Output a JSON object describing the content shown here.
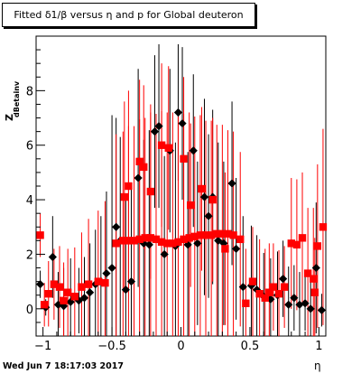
{
  "title": "Fitted δ1/β versus η and p for Global deuteron",
  "footer": "Wed Jun  7 18:17:03 2017",
  "chart_data": {
    "type": "scatter",
    "title": "Fitted δ1/β versus η and p for Global deuteron",
    "xlabel": "η",
    "ylabel": "Z",
    "ylabel_sub": "dBetainv",
    "xlim": [
      -1.05,
      1.05
    ],
    "ylim": [
      -1.0,
      10.0
    ],
    "xticks": [
      -1,
      -0.5,
      0,
      0.5,
      1
    ],
    "xtick_labels": [
      "−1",
      "−0.5",
      "0",
      "0.5",
      "1"
    ],
    "yticks": [
      0,
      2,
      4,
      6,
      8
    ],
    "ytick_labels": [
      "0",
      "2",
      "4",
      "6",
      "8"
    ],
    "grid": false,
    "series": [
      {
        "marker": "diamond",
        "color": "#000000",
        "points": [
          {
            "x": -1.02,
            "y": 0.9,
            "err": 0.5
          },
          {
            "x": -0.98,
            "y": 0.05,
            "err": 0.3
          },
          {
            "x": -0.93,
            "y": 1.9,
            "err": 1.5
          },
          {
            "x": -0.89,
            "y": 0.15,
            "err": 1.2
          },
          {
            "x": -0.85,
            "y": 0.1,
            "err": 1.4
          },
          {
            "x": -0.8,
            "y": 0.25,
            "err": 1.6
          },
          {
            "x": -0.74,
            "y": 0.3,
            "err": 1.2
          },
          {
            "x": -0.7,
            "y": 0.4,
            "err": 1.5
          },
          {
            "x": -0.66,
            "y": 0.6,
            "err": 1.8
          },
          {
            "x": -0.62,
            "y": 0.9,
            "err": 2.0
          },
          {
            "x": -0.58,
            "y": 1.0,
            "err": 2.4
          },
          {
            "x": -0.54,
            "y": 1.3,
            "err": 3.0
          },
          {
            "x": -0.5,
            "y": 1.5,
            "err": 5.6
          },
          {
            "x": -0.47,
            "y": 3.0,
            "err": 4.0
          },
          {
            "x": -0.44,
            "y": 2.5,
            "err": 3.8
          },
          {
            "x": -0.4,
            "y": 0.7,
            "err": 3.4
          },
          {
            "x": -0.36,
            "y": 1.0,
            "err": 3.5
          },
          {
            "x": -0.31,
            "y": 4.8,
            "err": 4.0
          },
          {
            "x": -0.27,
            "y": 2.4,
            "err": 3.8
          },
          {
            "x": -0.23,
            "y": 2.35,
            "err": 4.2
          },
          {
            "x": -0.19,
            "y": 6.5,
            "err": 2.8
          },
          {
            "x": -0.16,
            "y": 6.7,
            "err": 3.0
          },
          {
            "x": -0.12,
            "y": 2.0,
            "err": 3.6
          },
          {
            "x": -0.08,
            "y": 5.8,
            "err": 3.0
          },
          {
            "x": -0.04,
            "y": 2.3,
            "err": 3.8
          },
          {
            "x": -0.02,
            "y": 7.2,
            "err": 2.5
          },
          {
            "x": 0.01,
            "y": 6.8,
            "err": 2.8
          },
          {
            "x": 0.05,
            "y": 2.35,
            "err": 3.4
          },
          {
            "x": 0.09,
            "y": 5.8,
            "err": 2.8
          },
          {
            "x": 0.12,
            "y": 2.4,
            "err": 3.0
          },
          {
            "x": 0.17,
            "y": 4.1,
            "err": 3.6
          },
          {
            "x": 0.2,
            "y": 3.4,
            "err": 3.0
          },
          {
            "x": 0.23,
            "y": 4.1,
            "err": 3.2
          },
          {
            "x": 0.27,
            "y": 2.5,
            "err": 3.6
          },
          {
            "x": 0.31,
            "y": 2.4,
            "err": 3.0
          },
          {
            "x": 0.37,
            "y": 4.6,
            "err": 3.0
          },
          {
            "x": 0.4,
            "y": 2.2,
            "err": 2.6
          },
          {
            "x": 0.45,
            "y": 0.8,
            "err": 2.6
          },
          {
            "x": 0.51,
            "y": 0.85,
            "err": 2.2
          },
          {
            "x": 0.55,
            "y": 0.7,
            "err": 2.0
          },
          {
            "x": 0.6,
            "y": 0.45,
            "err": 1.6
          },
          {
            "x": 0.65,
            "y": 0.35,
            "err": 1.5
          },
          {
            "x": 0.7,
            "y": 0.5,
            "err": 1.6
          },
          {
            "x": 0.74,
            "y": 1.1,
            "err": 1.4
          },
          {
            "x": 0.78,
            "y": 0.15,
            "err": 1.4
          },
          {
            "x": 0.82,
            "y": 0.4,
            "err": 1.2
          },
          {
            "x": 0.86,
            "y": 0.15,
            "err": 1.2
          },
          {
            "x": 0.9,
            "y": 0.2,
            "err": 1.0
          },
          {
            "x": 0.94,
            "y": 0.0,
            "err": 1.0
          },
          {
            "x": 0.98,
            "y": 1.5,
            "err": 2.4
          },
          {
            "x": 1.02,
            "y": -0.05,
            "err": 0.6
          }
        ]
      },
      {
        "marker": "square",
        "color": "#ff0000",
        "points": [
          {
            "x": -1.02,
            "y": 2.7,
            "err": 0.8
          },
          {
            "x": -0.99,
            "y": 0.15,
            "err": 0.8
          },
          {
            "x": -0.96,
            "y": 0.55,
            "err": 1.2
          },
          {
            "x": -0.92,
            "y": 0.9,
            "err": 1.3
          },
          {
            "x": -0.88,
            "y": 0.8,
            "err": 1.5
          },
          {
            "x": -0.85,
            "y": 0.3,
            "err": 1.4
          },
          {
            "x": -0.82,
            "y": 0.6,
            "err": 1.6
          },
          {
            "x": -0.77,
            "y": 0.45,
            "err": 1.8
          },
          {
            "x": -0.72,
            "y": 0.8,
            "err": 2.0
          },
          {
            "x": -0.67,
            "y": 0.9,
            "err": 2.4
          },
          {
            "x": -0.6,
            "y": 1.0,
            "err": 2.6
          },
          {
            "x": -0.55,
            "y": 0.95,
            "err": 3.0
          },
          {
            "x": -0.47,
            "y": 2.4,
            "err": 4.0
          },
          {
            "x": -0.42,
            "y": 2.5,
            "err": 4.0
          },
          {
            "x": -0.38,
            "y": 2.5,
            "err": 4.2
          },
          {
            "x": -0.34,
            "y": 2.5,
            "err": 4.2
          },
          {
            "x": -0.3,
            "y": 2.55,
            "err": 4.4
          },
          {
            "x": -0.26,
            "y": 2.6,
            "err": 4.4
          },
          {
            "x": -0.22,
            "y": 2.6,
            "err": 4.6
          },
          {
            "x": -0.18,
            "y": 2.55,
            "err": 4.6
          },
          {
            "x": -0.14,
            "y": 2.45,
            "err": 4.8
          },
          {
            "x": -0.1,
            "y": 2.4,
            "err": 4.8
          },
          {
            "x": -0.06,
            "y": 2.4,
            "err": 4.8
          },
          {
            "x": -0.02,
            "y": 2.45,
            "err": 4.6
          },
          {
            "x": 0.02,
            "y": 2.55,
            "err": 4.6
          },
          {
            "x": 0.06,
            "y": 2.6,
            "err": 4.6
          },
          {
            "x": 0.1,
            "y": 2.65,
            "err": 4.4
          },
          {
            "x": 0.14,
            "y": 2.7,
            "err": 4.4
          },
          {
            "x": 0.18,
            "y": 2.7,
            "err": 4.2
          },
          {
            "x": 0.22,
            "y": 2.7,
            "err": 4.2
          },
          {
            "x": 0.26,
            "y": 2.75,
            "err": 4.0
          },
          {
            "x": 0.3,
            "y": 2.75,
            "err": 4.0
          },
          {
            "x": 0.34,
            "y": 2.75,
            "err": 3.8
          },
          {
            "x": 0.38,
            "y": 2.7,
            "err": 3.8
          },
          {
            "x": 0.43,
            "y": 2.55,
            "err": 3.2
          },
          {
            "x": -0.41,
            "y": 4.1,
            "err": 3.5
          },
          {
            "x": -0.38,
            "y": 4.5,
            "err": 3.5
          },
          {
            "x": -0.3,
            "y": 5.4,
            "err": 3.0
          },
          {
            "x": -0.27,
            "y": 5.2,
            "err": 3.0
          },
          {
            "x": -0.22,
            "y": 4.3,
            "err": 3.2
          },
          {
            "x": -0.14,
            "y": 6.0,
            "err": 3.0
          },
          {
            "x": -0.09,
            "y": 5.9,
            "err": 3.0
          },
          {
            "x": 0.02,
            "y": 5.5,
            "err": 3.0
          },
          {
            "x": 0.07,
            "y": 3.8,
            "err": 3.0
          },
          {
            "x": 0.15,
            "y": 4.4,
            "err": 3.0
          },
          {
            "x": 0.23,
            "y": 4.0,
            "err": 3.0
          },
          {
            "x": 0.32,
            "y": 2.2,
            "err": 2.8
          },
          {
            "x": 0.47,
            "y": 0.2,
            "err": 2.0
          },
          {
            "x": 0.52,
            "y": 1.0,
            "err": 2.0
          },
          {
            "x": 0.57,
            "y": 0.55,
            "err": 2.0
          },
          {
            "x": 0.61,
            "y": 0.4,
            "err": 1.8
          },
          {
            "x": 0.64,
            "y": 0.6,
            "err": 1.8
          },
          {
            "x": 0.67,
            "y": 0.8,
            "err": 1.6
          },
          {
            "x": 0.71,
            "y": 0.55,
            "err": 1.6
          },
          {
            "x": 0.75,
            "y": 0.8,
            "err": 1.5
          },
          {
            "x": 0.8,
            "y": 2.4,
            "err": 2.4
          },
          {
            "x": 0.84,
            "y": 2.35,
            "err": 2.4
          },
          {
            "x": 0.88,
            "y": 2.6,
            "err": 2.4
          },
          {
            "x": 0.92,
            "y": 1.3,
            "err": 2.4
          },
          {
            "x": 0.96,
            "y": 1.1,
            "err": 2.6
          },
          {
            "x": 0.99,
            "y": 2.3,
            "err": 3.0
          },
          {
            "x": 0.97,
            "y": 0.6,
            "err": 2.0
          },
          {
            "x": 1.03,
            "y": 3.0,
            "err": 3.6
          }
        ]
      }
    ]
  }
}
